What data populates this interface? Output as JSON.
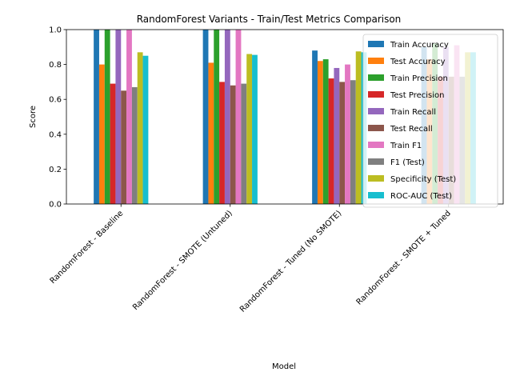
{
  "chart_data": {
    "type": "bar",
    "title": "RandomForest Variants - Train/Test Metrics Comparison",
    "xlabel": "Model",
    "ylabel": "Score",
    "ylim": [
      0,
      1.0
    ],
    "yticks": [
      "0.0",
      "0.2",
      "0.4",
      "0.6",
      "0.8",
      "1.0"
    ],
    "grid": false,
    "legend_position": "upper-right",
    "categories": [
      "RandomForest - Baseline",
      "RandomForest - SMOTE (Untuned)",
      "RandomForest - Tuned (No SMOTE)",
      "RandomForest - SMOTE + Tuned"
    ],
    "series": [
      {
        "name": "Train Accuracy",
        "color": "#1f77b4",
        "values": [
          1.0,
          1.0,
          0.88,
          0.9
        ]
      },
      {
        "name": "Test Accuracy",
        "color": "#ff7f0e",
        "values": [
          0.8,
          0.81,
          0.82,
          0.83
        ]
      },
      {
        "name": "Train Precision",
        "color": "#2ca02c",
        "values": [
          1.0,
          1.0,
          0.83,
          0.92
        ]
      },
      {
        "name": "Test Precision",
        "color": "#d62728",
        "values": [
          0.69,
          0.7,
          0.72,
          0.73
        ]
      },
      {
        "name": "Train Recall",
        "color": "#9467bd",
        "values": [
          1.0,
          1.0,
          0.78,
          0.9
        ]
      },
      {
        "name": "Test Recall",
        "color": "#8c564b",
        "values": [
          0.65,
          0.68,
          0.7,
          0.73
        ]
      },
      {
        "name": "Train F1",
        "color": "#e377c2",
        "values": [
          1.0,
          1.0,
          0.8,
          0.91
        ]
      },
      {
        "name": "F1 (Test)",
        "color": "#7f7f7f",
        "values": [
          0.67,
          0.69,
          0.71,
          0.73
        ]
      },
      {
        "name": "Specificity (Test)",
        "color": "#bcbd22",
        "values": [
          0.87,
          0.86,
          0.875,
          0.87
        ]
      },
      {
        "name": "ROC-AUC (Test)",
        "color": "#17becf",
        "values": [
          0.85,
          0.855,
          0.87,
          0.87
        ]
      }
    ]
  }
}
